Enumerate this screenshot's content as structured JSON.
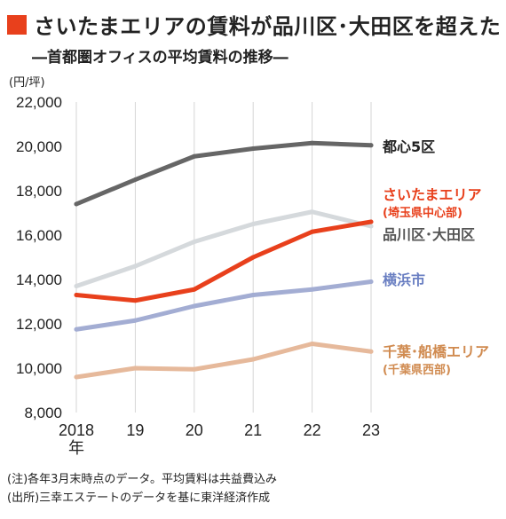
{
  "header": {
    "title": "さいたまエリアの賃料が品川区･大田区を超えた",
    "subtitle": "―首都圏オフィスの平均賃料の推移―",
    "accent_color": "#e8401c"
  },
  "footer": {
    "note": "(注)各年3月末時点のデータ。平均賃料は共益費込み",
    "source": "(出所)三幸エステートのデータを基に東洋経済作成"
  },
  "chart_data": {
    "type": "line",
    "unit_label": "(円/坪)",
    "x": [
      "2018",
      "19",
      "20",
      "21",
      "22",
      "23"
    ],
    "x_first_suffix": "年",
    "ylim": [
      8000,
      22000
    ],
    "yticks": [
      "8,000",
      "10,000",
      "12,000",
      "14,000",
      "16,000",
      "18,000",
      "20,000",
      "22,000"
    ],
    "grid": "vertical",
    "series": [
      {
        "name": "都心5区",
        "sub": "",
        "color": "#666666",
        "values": [
          17400,
          18500,
          19550,
          19900,
          20150,
          20050
        ]
      },
      {
        "name": "品川区･大田区",
        "sub": "",
        "color": "#d5d9dc",
        "values": [
          13700,
          14600,
          15700,
          16500,
          17050,
          16400
        ]
      },
      {
        "name": "さいたまエリア",
        "sub": "(埼玉県中心部)",
        "color": "#e8401c",
        "values": [
          13300,
          13050,
          13550,
          15000,
          16150,
          16600
        ]
      },
      {
        "name": "横浜市",
        "sub": "",
        "color": "#a3add3",
        "values": [
          11750,
          12150,
          12800,
          13300,
          13550,
          13900
        ]
      },
      {
        "name": "千葉･船橋エリア",
        "sub": "(千葉県西部)",
        "color": "#e6b99b",
        "values": [
          9600,
          10000,
          9950,
          10400,
          11100,
          10750
        ]
      }
    ]
  }
}
